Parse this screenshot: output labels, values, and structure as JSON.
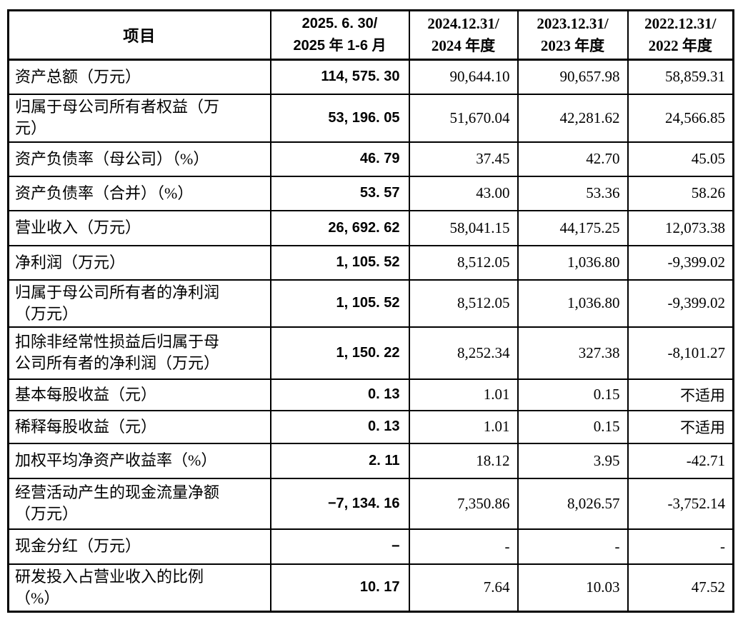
{
  "table": {
    "title_semantic": "主要财务数据及财务指标",
    "header": {
      "item_label": "项目",
      "periods": [
        {
          "line1": "2025. 6. 30/",
          "line2": "2025 年 1-6 月"
        },
        {
          "line1": "2024.12.31/",
          "line2": "2024 年度"
        },
        {
          "line1": "2023.12.31/",
          "line2": "2023 年度"
        },
        {
          "line1": "2022.12.31/",
          "line2": "2022 年度"
        }
      ]
    },
    "rows": [
      {
        "label": "资产总额（万元）",
        "label_lines": [
          "资产总额（万元）"
        ],
        "values": [
          "114, 575. 30",
          "90,644.10",
          "90,657.98",
          "58,859.31"
        ]
      },
      {
        "label": "归属于母公司所有者权益（万元）",
        "label_lines": [
          "归属于母公司所有者权益（万",
          "元）"
        ],
        "values": [
          "53, 196. 05",
          "51,670.04",
          "42,281.62",
          "24,566.85"
        ]
      },
      {
        "label": "资产负债率（母公司）（%）",
        "label_lines": [
          "资产负债率（母公司）（%）"
        ],
        "values": [
          "46. 79",
          "37.45",
          "42.70",
          "45.05"
        ]
      },
      {
        "label": "资产负债率（合并）（%）",
        "label_lines": [
          "资产负债率（合并）（%）"
        ],
        "values": [
          "53. 57",
          "43.00",
          "53.36",
          "58.26"
        ]
      },
      {
        "label": "营业收入（万元）",
        "label_lines": [
          "营业收入（万元）"
        ],
        "values": [
          "26, 692. 62",
          "58,041.15",
          "44,175.25",
          "12,073.38"
        ]
      },
      {
        "label": "净利润（万元）",
        "label_lines": [
          "净利润（万元）"
        ],
        "values": [
          "1, 105. 52",
          "8,512.05",
          "1,036.80",
          "-9,399.02"
        ]
      },
      {
        "label": "归属于母公司所有者的净利润（万元）",
        "label_lines": [
          "归属于母公司所有者的净利润",
          "（万元）"
        ],
        "values": [
          "1, 105. 52",
          "8,512.05",
          "1,036.80",
          "-9,399.02"
        ]
      },
      {
        "label": "扣除非经常性损益后归属于母公司所有者的净利润（万元）",
        "label_lines": [
          "扣除非经常性损益后归属于母",
          "公司所有者的净利润（万元）"
        ],
        "values": [
          "1, 150. 22",
          "8,252.34",
          "327.38",
          "-8,101.27"
        ]
      },
      {
        "label": "基本每股收益（元）",
        "label_lines": [
          "基本每股收益（元）"
        ],
        "values": [
          "0. 13",
          "1.01",
          "0.15",
          "不适用"
        ]
      },
      {
        "label": "稀释每股收益（元）",
        "label_lines": [
          "稀释每股收益（元）"
        ],
        "values": [
          "0. 13",
          "1.01",
          "0.15",
          "不适用"
        ]
      },
      {
        "label": "加权平均净资产收益率（%）",
        "label_lines": [
          "加权平均净资产收益率（%）"
        ],
        "values": [
          "2. 11",
          "18.12",
          "3.95",
          "-42.71"
        ]
      },
      {
        "label": "经营活动产生的现金流量净额（万元）",
        "label_lines": [
          "经营活动产生的现金流量净额",
          "（万元）"
        ],
        "values": [
          "−7, 134. 16",
          "7,350.86",
          "8,026.57",
          "-3,752.14"
        ]
      },
      {
        "label": "现金分红（万元）",
        "label_lines": [
          "现金分红（万元）"
        ],
        "values": [
          "−",
          "-",
          "-",
          "-"
        ]
      },
      {
        "label": "研发投入占营业收入的比例（%）",
        "label_lines": [
          "研发投入占营业收入的比例",
          "（%）"
        ],
        "values": [
          "10. 17",
          "7.64",
          "10.03",
          "47.52"
        ]
      }
    ]
  }
}
